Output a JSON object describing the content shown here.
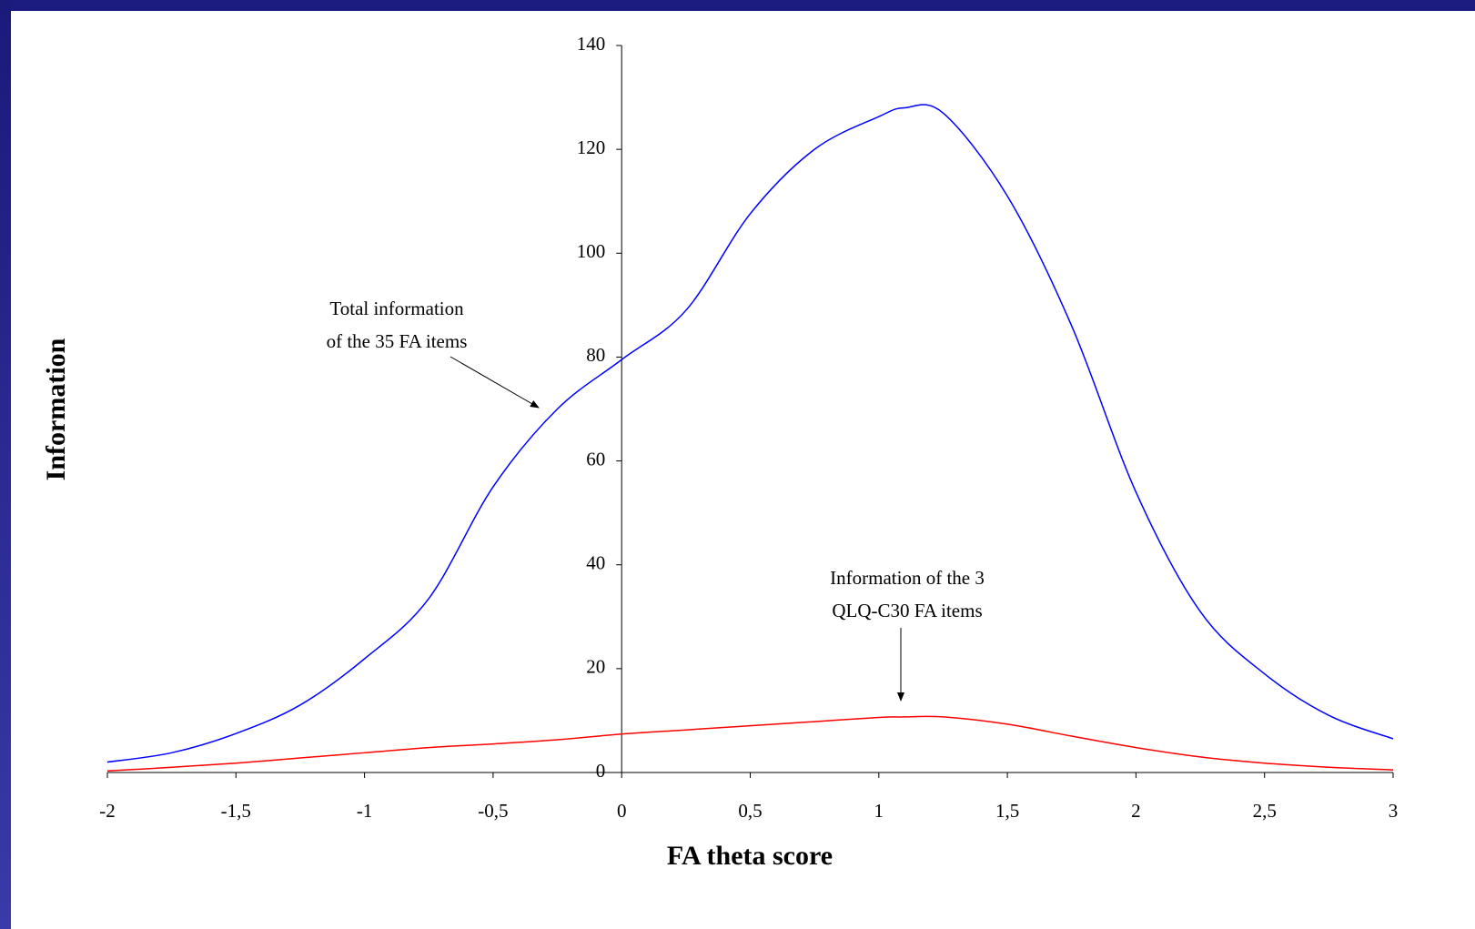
{
  "chart_data": {
    "type": "line",
    "x_label": "FA theta score",
    "y_label": "Information",
    "x": [
      -2,
      -1.75,
      -1.5,
      -1.25,
      -1,
      -0.75,
      -0.5,
      -0.25,
      0,
      0.25,
      0.5,
      0.75,
      1,
      1.1,
      1.25,
      1.5,
      1.75,
      2,
      2.25,
      2.5,
      2.75,
      3
    ],
    "series": [
      {
        "color": "#0000ff",
        "values": [
          2,
          3.8,
          7.5,
          13,
          21.9,
          33.5,
          55,
          70,
          79.5,
          89,
          107.6,
          120,
          126.3,
          128,
          127,
          111,
          86,
          54,
          31,
          19,
          11,
          6.5
        ]
      },
      {
        "color": "#ff0000",
        "values": [
          0.3,
          1,
          1.8,
          2.8,
          3.8,
          4.8,
          5.5,
          6.3,
          7.4,
          8.2,
          9,
          9.8,
          10.6,
          10.7,
          10.7,
          9.3,
          7,
          4.8,
          3,
          1.8,
          1,
          0.5
        ]
      }
    ],
    "xlim": [
      -2,
      3
    ],
    "ylim": [
      0,
      140
    ],
    "xticks": [
      -2,
      {
        "value": -1.5,
        "label": "-1,5"
      },
      -1,
      {
        "value": -0.5,
        "label": "-0,5"
      },
      0,
      {
        "value": 0.5,
        "label": "0,5"
      },
      1,
      {
        "value": 1.5,
        "label": "1,5"
      },
      2,
      {
        "value": 2.5,
        "label": "2,5"
      },
      3
    ],
    "yticks": [
      0,
      20,
      40,
      60,
      80,
      100,
      120,
      140
    ],
    "annotations": [
      {
        "lines": [
          "Total information",
          "of the 35 FA items"
        ]
      },
      {
        "lines": [
          "Information of the 3",
          "QLQ-C30 FA items"
        ]
      }
    ]
  }
}
